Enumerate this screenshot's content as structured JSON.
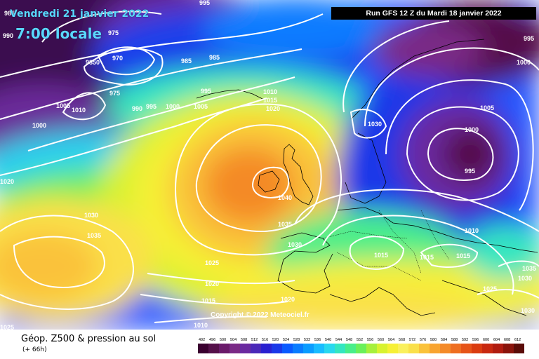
{
  "header": {
    "date": "Vendredi 21 janvier 2022",
    "time": "7:00 locale",
    "run": "Run GFS 12 Z du Mardi 18 janvier 2022"
  },
  "copyright": "Copyright © 2022 Meteociel.fr",
  "footer": {
    "title": "Géop. Z500 & pression au sol",
    "subtitle": "(+ 66h)"
  },
  "legend": {
    "values": [
      "492",
      "496",
      "500",
      "504",
      "508",
      "512",
      "516",
      "520",
      "524",
      "528",
      "532",
      "536",
      "540",
      "544",
      "548",
      "552",
      "556",
      "560",
      "564",
      "568",
      "572",
      "576",
      "580",
      "584",
      "588",
      "592",
      "596",
      "600",
      "604",
      "608",
      "612"
    ],
    "colors": [
      "#3a0030",
      "#55104a",
      "#6a1a6a",
      "#7a2a86",
      "#6a2aa0",
      "#4a28b8",
      "#2a20d0",
      "#1a38e8",
      "#0a5aff",
      "#0a7cff",
      "#0a9cff",
      "#18bcff",
      "#28d8ee",
      "#34e6c0",
      "#48ee8a",
      "#6af05a",
      "#a6f03c",
      "#d8f230",
      "#f6f036",
      "#faf05c",
      "#fae04a",
      "#fac23a",
      "#f8a430",
      "#f48a28",
      "#ee6e20",
      "#e65418",
      "#da3c10",
      "#c82810",
      "#b01c10",
      "#8a140c",
      "#5a0c08"
    ]
  },
  "isobars": [
    {
      "text": "995"
    },
    {
      "text": "985"
    },
    {
      "text": "990"
    },
    {
      "text": "975"
    },
    {
      "text": "970"
    },
    {
      "text": "9850"
    },
    {
      "text": "975"
    },
    {
      "text": "985"
    },
    {
      "text": "985"
    },
    {
      "text": "1005"
    },
    {
      "text": "1010"
    },
    {
      "text": "990"
    },
    {
      "text": "995"
    },
    {
      "text": "1000"
    },
    {
      "text": "995"
    },
    {
      "text": "1005"
    },
    {
      "text": "1000"
    },
    {
      "text": "1010"
    },
    {
      "text": "1015"
    },
    {
      "text": "1020"
    },
    {
      "text": "1030"
    },
    {
      "text": "1005"
    },
    {
      "text": "1000"
    },
    {
      "text": "995"
    },
    {
      "text": "1000"
    },
    {
      "text": "995"
    },
    {
      "text": "1040"
    },
    {
      "text": "1035"
    },
    {
      "text": "1030"
    },
    {
      "text": "1030"
    },
    {
      "text": "1035"
    },
    {
      "text": "1025"
    },
    {
      "text": "1020"
    },
    {
      "text": "1015"
    },
    {
      "text": "1020"
    },
    {
      "text": "1010"
    },
    {
      "text": "1015"
    },
    {
      "text": "1015"
    },
    {
      "text": "1015"
    },
    {
      "text": "1025"
    },
    {
      "text": "1035"
    },
    {
      "text": "1030"
    },
    {
      "text": "1030"
    },
    {
      "text": "1025"
    },
    {
      "text": "1020"
    }
  ]
}
